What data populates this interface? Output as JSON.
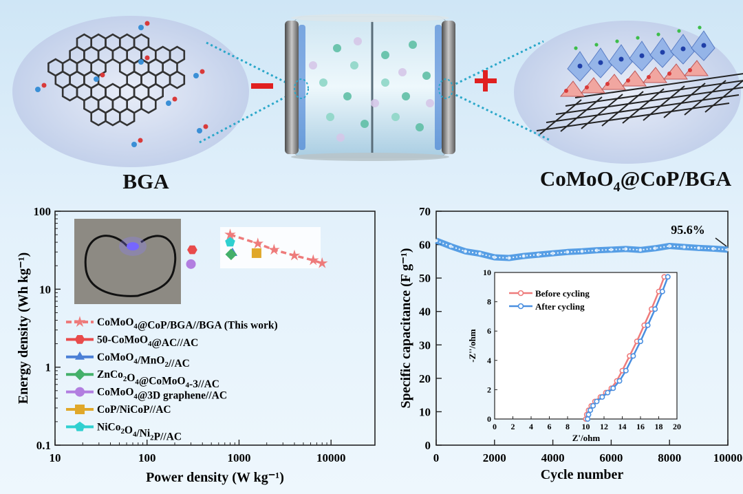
{
  "top": {
    "left_label": "BGA",
    "right_label_main": "CoMoO",
    "right_label_sub": "4",
    "right_label_tail": "@CoP/BGA",
    "minus_sign": "–",
    "plus_sign": "+",
    "colors": {
      "minus": "#e02020",
      "plus": "#e02020",
      "dotted": "#2aa7c9"
    }
  },
  "chart_data": [
    {
      "type": "scatter",
      "xscale": "log",
      "yscale": "log",
      "xlim": [
        10,
        30000
      ],
      "ylim": [
        0.1,
        100
      ],
      "xlabel": "Power density (W kg⁻¹)",
      "ylabel": "Energy density (Wh kg⁻¹)",
      "x_ticks": [
        "10",
        "100",
        "1000",
        "10000"
      ],
      "y_ticks": [
        "0.1",
        "1",
        "10",
        "100"
      ],
      "legend_position": "left",
      "series": [
        {
          "name": "CoMoO₄@CoP/BGA//BGA (This work)",
          "marker": "star",
          "line": true,
          "color": "#ee7b7b",
          "points": [
            [
              800,
              50.1
            ],
            [
              1600,
              38.5
            ],
            [
              2400,
              32.0
            ],
            [
              4000,
              27.0
            ],
            [
              6400,
              23.5
            ],
            [
              8000,
              21.5
            ]
          ]
        },
        {
          "name": "50-CoMoO₄@AC//AC",
          "marker": "hexagon",
          "color": "#e84b4b",
          "points": [
            [
              310,
              32
            ]
          ]
        },
        {
          "name": "CoMoO₄/MnO₂//AC",
          "marker": "triangle",
          "color": "#4a7fd6",
          "points": [
            [
              850,
              29
            ]
          ]
        },
        {
          "name": "ZnCo₂O₄@CoMoO₄-3//AC",
          "marker": "diamond",
          "color": "#44b06a",
          "points": [
            [
              820,
              28
            ]
          ]
        },
        {
          "name": "CoMoO₄@3D graphene//AC",
          "marker": "circle",
          "color": "#b27ee0",
          "points": [
            [
              300,
              21
            ]
          ]
        },
        {
          "name": "CoP/NiCoP//AC",
          "marker": "square",
          "color": "#e0a82a",
          "points": [
            [
              1550,
              29
            ]
          ]
        },
        {
          "name": "NiCo₂O₄/Ni₂P//AC",
          "marker": "pentagon",
          "color": "#2fd0d0",
          "points": [
            [
              800,
              40
            ]
          ]
        }
      ]
    },
    {
      "type": "line",
      "xlim": [
        0,
        10000
      ],
      "ylim": [
        0,
        70
      ],
      "xlabel": "Cycle number",
      "ylabel": "Specific capacitance (F g⁻¹)",
      "x_ticks": [
        "0",
        "2000",
        "4000",
        "6000",
        "8000",
        "10000"
      ],
      "y_ticks": [
        "0",
        "10",
        "20",
        "30",
        "40",
        "50",
        "60",
        "70"
      ],
      "annotation": "95.6%",
      "series": [
        {
          "name": "",
          "color": "#3d8fe0",
          "x": [
            0,
            500,
            1000,
            1500,
            2000,
            2500,
            3000,
            3500,
            4000,
            4500,
            5000,
            5500,
            6000,
            6500,
            7000,
            7500,
            8000,
            8500,
            9000,
            9500,
            10000
          ],
          "y": [
            61.2,
            59.5,
            58.0,
            57.3,
            56.2,
            56.0,
            56.6,
            57.0,
            57.4,
            57.8,
            58.0,
            58.3,
            58.5,
            58.7,
            58.4,
            58.9,
            59.6,
            59.3,
            59.0,
            58.8,
            58.5
          ]
        }
      ]
    },
    {
      "type": "line",
      "inset": true,
      "xlim": [
        0,
        20
      ],
      "ylim": [
        0,
        10
      ],
      "xlabel": "Z'/ohm",
      "ylabel": "-Z''/ohm",
      "x_ticks": [
        "0",
        "2",
        "4",
        "6",
        "8",
        "10",
        "12",
        "14",
        "16",
        "18",
        "20"
      ],
      "y_ticks": [
        "0",
        "2",
        "4",
        "6",
        "8",
        "10"
      ],
      "legend_position": "top-left",
      "series": [
        {
          "name": "Before cycling",
          "color": "#ee7b7b",
          "x": [
            10.0,
            10.1,
            10.3,
            10.6,
            11.0,
            11.6,
            12.2,
            12.8,
            13.4,
            14.0,
            14.8,
            15.6,
            16.4,
            17.2,
            18.0,
            18.6
          ],
          "y": [
            0.0,
            0.3,
            0.6,
            0.9,
            1.2,
            1.5,
            1.8,
            2.1,
            2.6,
            3.3,
            4.3,
            5.3,
            6.4,
            7.5,
            8.7,
            9.7
          ]
        },
        {
          "name": "After cycling",
          "color": "#4a8fe0",
          "x": [
            10.2,
            10.3,
            10.5,
            10.8,
            11.2,
            11.8,
            12.4,
            13.0,
            13.7,
            14.4,
            15.2,
            16.0,
            16.8,
            17.6,
            18.4,
            19.0
          ],
          "y": [
            0.0,
            0.3,
            0.6,
            0.9,
            1.2,
            1.5,
            1.8,
            2.1,
            2.6,
            3.3,
            4.3,
            5.3,
            6.4,
            7.5,
            8.7,
            9.7
          ]
        }
      ]
    }
  ]
}
